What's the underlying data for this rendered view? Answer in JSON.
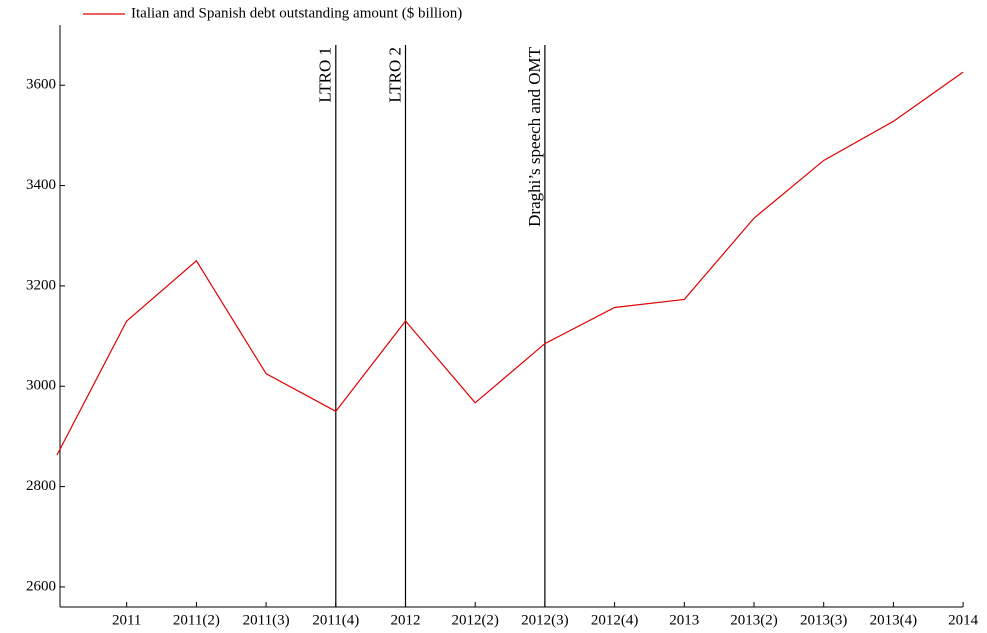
{
  "chart_data": {
    "type": "line",
    "categories": [
      null,
      "2011",
      "2011(2)",
      "2011(3)",
      "2011(4)",
      "2012",
      "2012(2)",
      "2012(3)",
      "2012(4)",
      "2013",
      "2013(2)",
      "2013(3)",
      "2013(4)",
      "2014"
    ],
    "series": [
      {
        "name": "Italian and Spanish debt outstanding amount ($ billion)",
        "color": "#e00000",
        "values": [
          2863,
          3130,
          3250,
          3025,
          2950,
          3130,
          2967,
          3085,
          3157,
          3173,
          3335,
          3450,
          3528,
          3626
        ]
      }
    ],
    "events": [
      {
        "label": "LTRO 1",
        "category": "2011(4)"
      },
      {
        "label": "LTRO 2",
        "category": "2012"
      },
      {
        "label": "Draghi’s speech and OMT",
        "category": "2012(3)"
      }
    ],
    "ylim": [
      2560,
      3720
    ],
    "yticks": [
      2600,
      2800,
      3000,
      3200,
      3400,
      3600
    ],
    "legend": "top-left",
    "grid": false
  }
}
